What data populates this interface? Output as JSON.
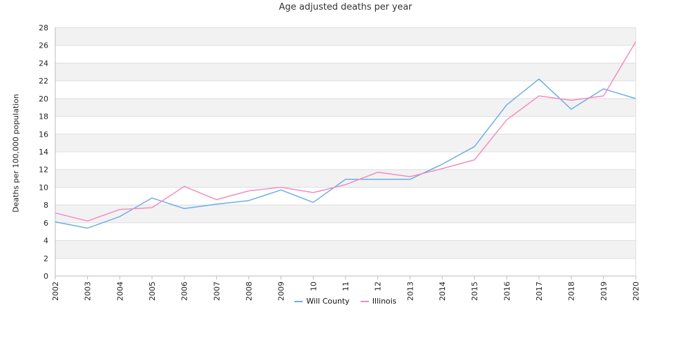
{
  "colors": {
    "will_county": "#6aaee8",
    "illinois": "#f28cc0",
    "band": "#f2f2f2",
    "grid": "#dddddd",
    "axis": "#bbbbbb"
  },
  "chart_data": {
    "type": "line",
    "title": "Age adjusted deaths per year",
    "xlabel": "",
    "ylabel": "Deaths per 100,000 population",
    "ylim": [
      0,
      28
    ],
    "yticks": [
      0,
      2,
      4,
      6,
      8,
      10,
      12,
      14,
      16,
      18,
      20,
      22,
      24,
      26,
      28
    ],
    "grid": "horizontal alternating bands",
    "legend_position": "bottom-center",
    "categories": [
      "2002",
      "2003",
      "2004",
      "2005",
      "2006",
      "2007",
      "2008",
      "2009",
      "10",
      "11",
      "12",
      "2013",
      "2014",
      "2015",
      "2016",
      "2017",
      "2018",
      "2019",
      "2020"
    ],
    "series": [
      {
        "name": "Will County",
        "color": "#6aaee8",
        "values": [
          6.1,
          5.4,
          6.7,
          8.8,
          7.6,
          8.1,
          8.5,
          9.7,
          8.3,
          10.9,
          10.9,
          10.9,
          12.6,
          14.6,
          19.3,
          22.2,
          18.8,
          21.1,
          20.0
        ]
      },
      {
        "name": "Illinois",
        "color": "#f28cc0",
        "values": [
          7.1,
          6.2,
          7.5,
          7.7,
          10.1,
          8.6,
          9.6,
          10.0,
          9.4,
          10.3,
          11.7,
          11.2,
          12.1,
          13.1,
          17.6,
          20.3,
          19.8,
          20.3,
          26.4
        ]
      }
    ]
  }
}
